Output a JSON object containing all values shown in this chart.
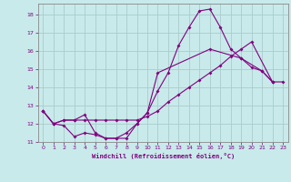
{
  "title": "",
  "xlabel": "Windchill (Refroidissement éolien,°C)",
  "ylabel": "",
  "bg_color": "#c8eaea",
  "line_color": "#800080",
  "grid_color": "#aacccc",
  "spine_color": "#888888",
  "xlim": [
    -0.5,
    23.5
  ],
  "ylim": [
    11,
    18.6
  ],
  "xticks": [
    0,
    1,
    2,
    3,
    4,
    5,
    6,
    7,
    8,
    9,
    10,
    11,
    12,
    13,
    14,
    15,
    16,
    17,
    18,
    19,
    20,
    21,
    22,
    23
  ],
  "yticks": [
    11,
    12,
    13,
    14,
    15,
    16,
    17,
    18
  ],
  "line1_x": [
    0,
    1,
    2,
    3,
    4,
    5,
    6,
    7,
    8,
    9,
    10,
    11,
    12,
    13,
    14,
    15,
    16,
    17,
    18,
    19,
    20,
    21,
    22
  ],
  "line1_y": [
    12.7,
    12.0,
    11.9,
    11.3,
    11.5,
    11.4,
    11.2,
    11.2,
    11.2,
    12.0,
    12.6,
    13.8,
    14.8,
    16.3,
    17.3,
    18.2,
    18.3,
    17.3,
    16.1,
    15.6,
    15.1,
    14.9,
    14.3
  ],
  "line2_x": [
    0,
    1,
    2,
    3,
    4,
    5,
    6,
    7,
    8,
    9,
    10,
    11,
    12,
    13,
    14,
    15,
    16,
    17,
    18,
    19,
    20,
    22,
    23
  ],
  "line2_y": [
    12.7,
    12.0,
    12.2,
    12.2,
    12.2,
    12.2,
    12.2,
    12.2,
    12.2,
    12.2,
    12.4,
    12.7,
    13.2,
    13.6,
    14.0,
    14.4,
    14.8,
    15.2,
    15.7,
    16.1,
    16.5,
    14.3,
    14.3
  ],
  "line3_x": [
    0,
    1,
    2,
    3,
    4,
    5,
    6,
    7,
    8,
    9,
    10,
    11,
    16,
    19,
    21,
    22
  ],
  "line3_y": [
    12.7,
    12.0,
    12.2,
    12.2,
    12.5,
    11.5,
    11.2,
    11.2,
    11.5,
    12.0,
    12.6,
    14.8,
    16.1,
    15.6,
    14.9,
    14.3
  ]
}
